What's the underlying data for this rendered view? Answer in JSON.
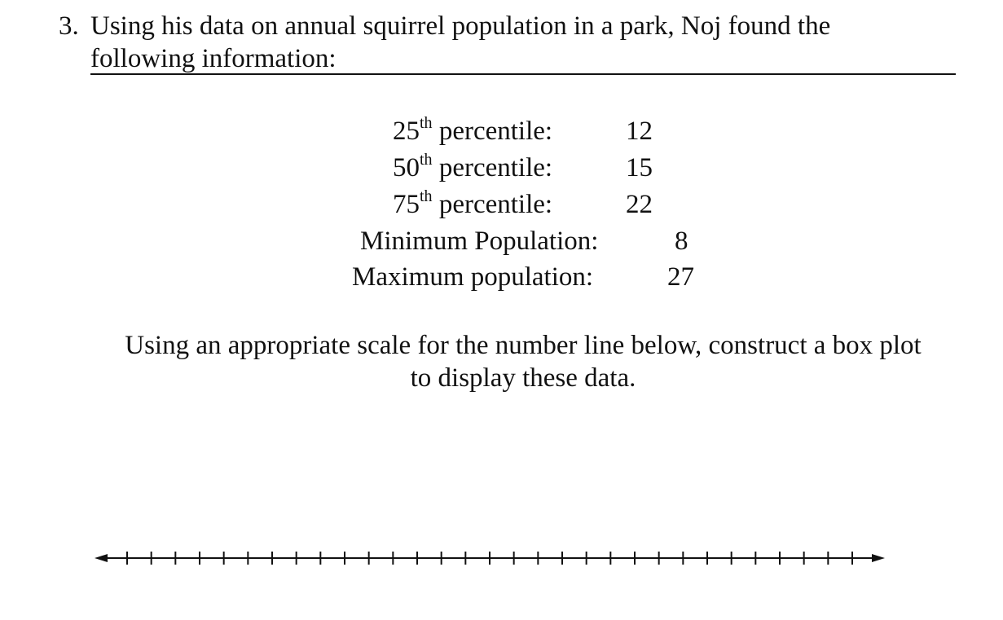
{
  "question": {
    "number": "3.",
    "line1": "Using his data on annual squirrel population in a park, Noj found the",
    "line2": "following information:"
  },
  "stats": [
    {
      "ordinal": "25",
      "suffix": "th",
      "label": " percentile:",
      "value": "12"
    },
    {
      "ordinal": "50",
      "suffix": "th",
      "label": " percentile:",
      "value": "15"
    },
    {
      "ordinal": "75",
      "suffix": "th",
      "label": " percentile:",
      "value": "22"
    },
    {
      "ordinal": "",
      "suffix": "",
      "label": "Minimum Population:",
      "value": "8"
    },
    {
      "ordinal": "",
      "suffix": "",
      "label": "Maximum population:",
      "value": "27"
    }
  ],
  "instruction": {
    "line1": "Using an appropriate scale for the number line below, construct a box plot",
    "line2": "to display these data."
  },
  "number_line": {
    "tick_count": 31,
    "tick_labels": [],
    "arrows": "both"
  }
}
